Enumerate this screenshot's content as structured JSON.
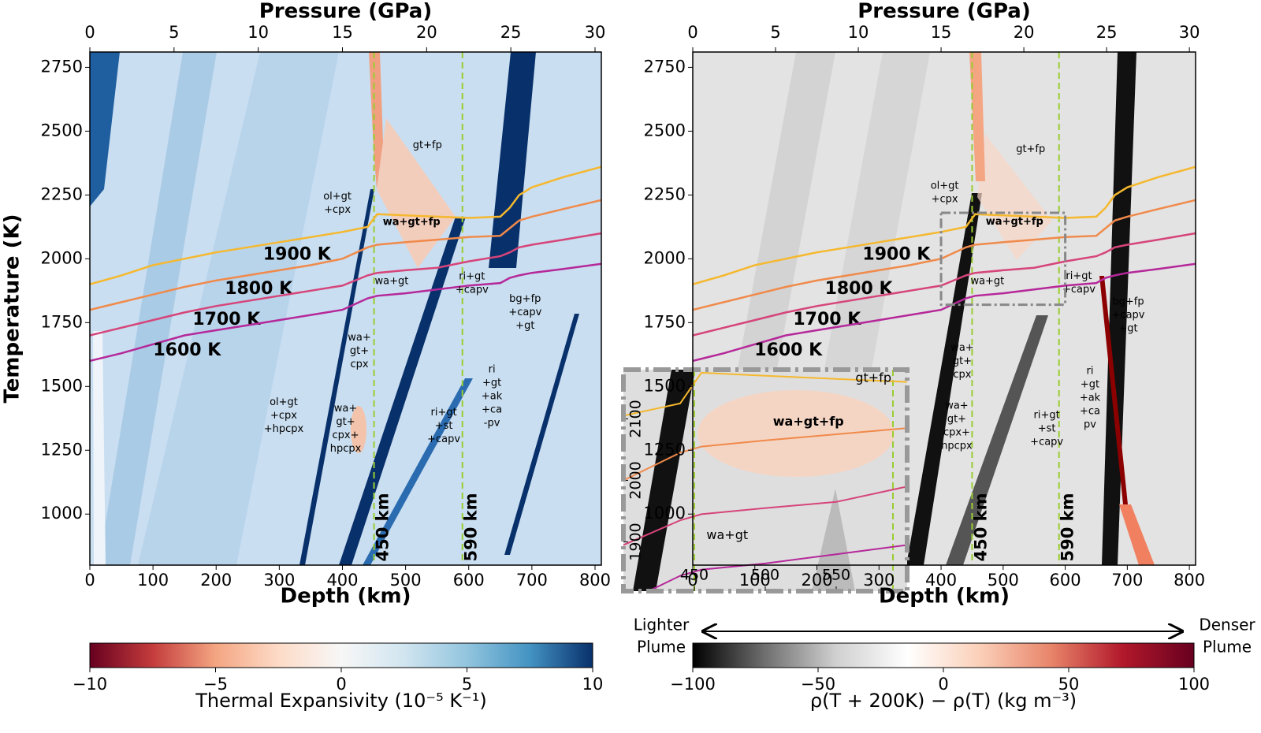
{
  "chart_data": [
    {
      "type": "line",
      "xlabel": "Depth (km)",
      "x2label": "Pressure (GPa)",
      "ylabel": "Temperature (K)",
      "x": [
        0,
        50,
        100,
        150,
        200,
        250,
        300,
        350,
        400,
        440,
        455,
        500,
        550,
        600,
        650,
        665,
        680,
        700,
        750,
        810
      ],
      "series": [
        {
          "name": "1900 K",
          "color": "#f5b82e",
          "values": [
            1900,
            1935,
            1975,
            2000,
            2025,
            2045,
            2065,
            2085,
            2105,
            2125,
            2175,
            2170,
            2165,
            2160,
            2165,
            2200,
            2250,
            2280,
            2320,
            2360
          ]
        },
        {
          "name": "1800 K",
          "color": "#f08a4b",
          "values": [
            1800,
            1830,
            1860,
            1890,
            1915,
            1935,
            1955,
            1975,
            2000,
            2045,
            2055,
            2065,
            2075,
            2085,
            2090,
            2120,
            2150,
            2165,
            2195,
            2230
          ]
        },
        {
          "name": "1700 K",
          "color": "#d6457a",
          "values": [
            1700,
            1730,
            1760,
            1790,
            1815,
            1835,
            1855,
            1875,
            1895,
            1935,
            1945,
            1955,
            1965,
            1990,
            2010,
            2025,
            2045,
            2055,
            2075,
            2100
          ]
        },
        {
          "name": "1600 K",
          "color": "#b5289a",
          "values": [
            1600,
            1630,
            1665,
            1700,
            1720,
            1740,
            1760,
            1780,
            1800,
            1845,
            1855,
            1865,
            1880,
            1895,
            1905,
            1925,
            1935,
            1945,
            1960,
            1980
          ]
        }
      ],
      "xlim": [
        0,
        810
      ],
      "xticks": [
        0,
        100,
        200,
        300,
        400,
        500,
        600,
        700,
        800
      ],
      "x2lim": [
        0,
        30.375
      ],
      "x2ticks": [
        0,
        5,
        10,
        15,
        20,
        25,
        30
      ],
      "ylim": [
        800,
        2810
      ],
      "yticks": [
        1000,
        1250,
        1500,
        1750,
        2000,
        2250,
        2500,
        2750
      ],
      "vlines": [
        {
          "x": 450,
          "label": "450 km"
        },
        {
          "x": 590,
          "label": "590 km"
        }
      ],
      "vline_color": "#9acd32",
      "annotations": [
        {
          "text": [
            "gt+fp"
          ]
        },
        {
          "text": [
            "ol+gt",
            "+cpx"
          ]
        },
        {
          "text": [
            "wa+gt+fp"
          ],
          "bold": true
        },
        {
          "text": [
            "wa+gt"
          ]
        },
        {
          "text": [
            "ri+gt",
            "+capv"
          ]
        },
        {
          "text": [
            "bg+fp",
            "+capv",
            "+gt"
          ]
        },
        {
          "text": [
            "wa+",
            "gt+",
            "cpx"
          ]
        },
        {
          "text": [
            "ol+gt",
            "+cpx",
            "+hpcpx"
          ]
        },
        {
          "text": [
            "wa+",
            "gt+",
            "cpx+",
            "hpcpx"
          ]
        },
        {
          "text": [
            "ri+gt",
            "+st",
            "+capv"
          ]
        },
        {
          "text": [
            "ri",
            "+gt",
            "+ak",
            "+ca",
            "-pv"
          ]
        }
      ],
      "colorbar": {
        "label": "Thermal Expansivity (10⁻⁵ K⁻¹)",
        "lim": [
          -10,
          10
        ],
        "ticks": [
          {
            "value": -10,
            "label": "−10"
          },
          {
            "value": -5,
            "label": "−5"
          },
          0,
          5,
          10
        ],
        "colors": [
          "#67001f",
          "#c43c3c",
          "#f4a582",
          "#fddbc7",
          "#f7f7f7",
          "#d1e5f0",
          "#92c5de",
          "#4393c3",
          "#08306b"
        ]
      }
    },
    {
      "type": "line",
      "xlabel": "Depth (km)",
      "x2label": "Pressure (GPa)",
      "x": [
        0,
        50,
        100,
        150,
        200,
        250,
        300,
        350,
        400,
        440,
        455,
        500,
        550,
        600,
        650,
        665,
        680,
        700,
        750,
        810
      ],
      "series": [
        {
          "name": "1900 K",
          "color": "#f5b82e",
          "values": [
            1900,
            1935,
            1975,
            2000,
            2025,
            2045,
            2065,
            2085,
            2105,
            2125,
            2175,
            2170,
            2165,
            2160,
            2165,
            2200,
            2250,
            2280,
            2320,
            2360
          ]
        },
        {
          "name": "1800 K",
          "color": "#f08a4b",
          "values": [
            1800,
            1830,
            1860,
            1890,
            1915,
            1935,
            1955,
            1975,
            2000,
            2045,
            2055,
            2065,
            2075,
            2085,
            2090,
            2120,
            2150,
            2165,
            2195,
            2230
          ]
        },
        {
          "name": "1700 K",
          "color": "#d6457a",
          "values": [
            1700,
            1730,
            1760,
            1790,
            1815,
            1835,
            1855,
            1875,
            1895,
            1935,
            1945,
            1955,
            1965,
            1990,
            2010,
            2025,
            2045,
            2055,
            2075,
            2100
          ]
        },
        {
          "name": "1600 K",
          "color": "#b5289a",
          "values": [
            1600,
            1630,
            1665,
            1700,
            1720,
            1740,
            1760,
            1780,
            1800,
            1845,
            1855,
            1865,
            1880,
            1895,
            1905,
            1925,
            1935,
            1945,
            1960,
            1980
          ]
        }
      ],
      "xlim": [
        0,
        810
      ],
      "xticks": [
        0,
        100,
        200,
        300,
        400,
        500,
        600,
        700,
        800
      ],
      "x2lim": [
        0,
        30.375
      ],
      "x2ticks": [
        0,
        5,
        10,
        15,
        20,
        25,
        30
      ],
      "ylim": [
        800,
        2810
      ],
      "yticks": [
        1000,
        1250,
        1500,
        1750,
        2000,
        2250,
        2500,
        2750
      ],
      "vlines": [
        {
          "x": 450,
          "label": "450 km"
        },
        {
          "x": 590,
          "label": "590 km"
        }
      ],
      "vline_color": "#9acd32",
      "annotations": [
        {
          "text": [
            "gt+fp"
          ]
        },
        {
          "text": [
            "ol+gt",
            "+cpx"
          ]
        },
        {
          "text": [
            "wa+gt+fp"
          ],
          "bold": true
        },
        {
          "text": [
            "wa+gt"
          ]
        },
        {
          "text": [
            "ri+gt",
            "+capv"
          ]
        },
        {
          "text": [
            "bg+fp",
            "+capv",
            "+gt"
          ]
        },
        {
          "text": [
            "wa+",
            "gt+",
            "cpx"
          ]
        },
        {
          "text": [
            "wa+",
            "gt+",
            "cpx+",
            "hpcpx"
          ]
        },
        {
          "text": [
            "ri+gt",
            "+st",
            "+capv"
          ]
        },
        {
          "text": [
            "ri",
            "+gt",
            "+ak",
            "+ca",
            "pv"
          ]
        }
      ],
      "inset": {
        "xlim": [
          400,
          600
        ],
        "ylim": [
          1820,
          2180
        ],
        "xticks": [
          450,
          500,
          550
        ],
        "yticks": [
          1900,
          2000,
          2100
        ],
        "annotations": [
          {
            "text": [
              "gt+fp"
            ]
          },
          {
            "text": [
              "wa+gt+fp"
            ],
            "bold": true
          },
          {
            "text": [
              "wa+gt"
            ]
          }
        ]
      },
      "arrow_labels": [
        [
          "Lighter",
          "Plume"
        ],
        [
          "Denser",
          "Plume"
        ]
      ],
      "colorbar": {
        "label": "ρ(T + 200K) − ρ(T) (kg m⁻³)",
        "lim": [
          -100,
          100
        ],
        "ticks": [
          {
            "value": -100,
            "label": "−100"
          },
          {
            "value": -50,
            "label": "−50"
          },
          0,
          50,
          100
        ],
        "colors": [
          "#000000",
          "#6e6e6e",
          "#d0d0d0",
          "#ffffff",
          "#fbd0b9",
          "#e8856a",
          "#b2182b",
          "#67001f"
        ]
      }
    }
  ]
}
